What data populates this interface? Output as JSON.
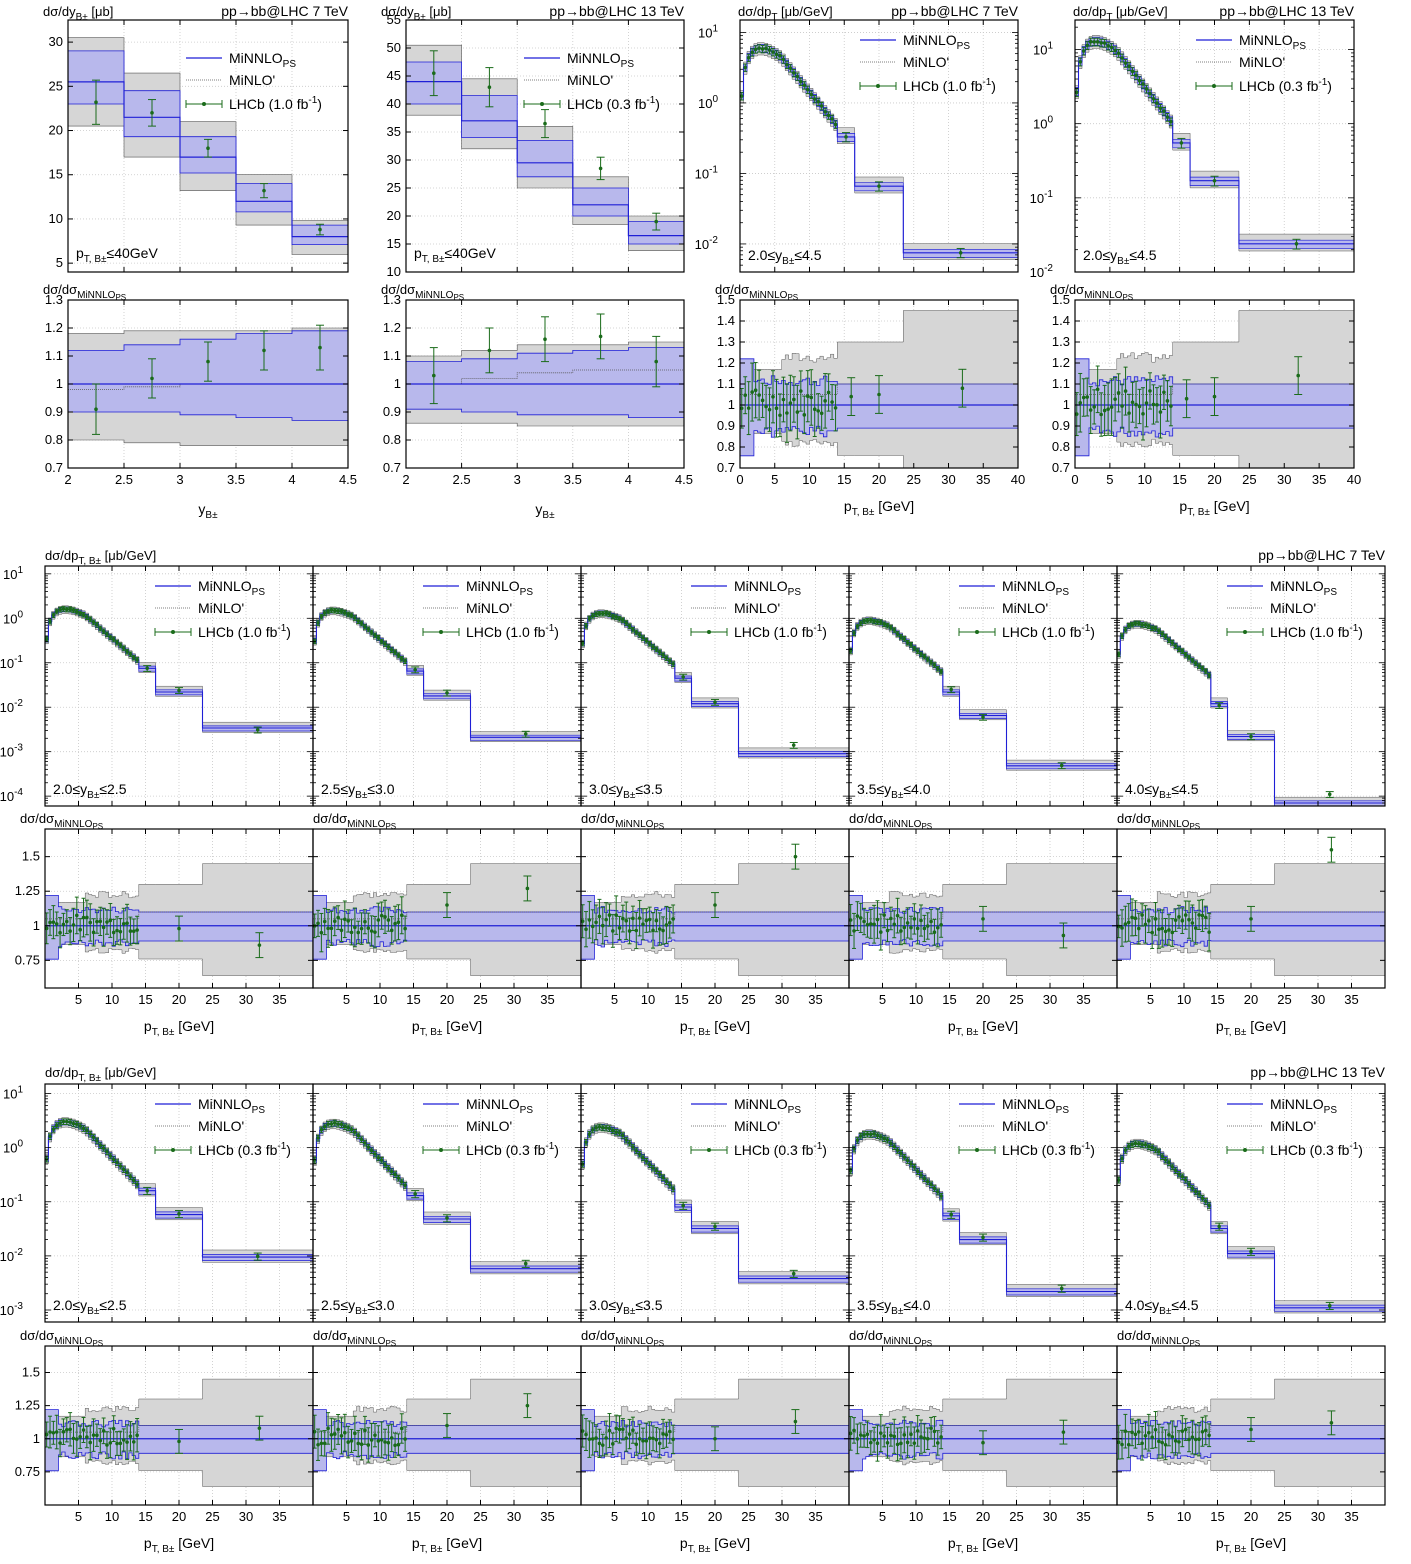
{
  "legend": {
    "minnlo_label": "MiNNLO",
    "minnlo_sub": "PS",
    "minlo_label": "MiNLO'",
    "lhcb_7tev": "LHCb (1.0 fb",
    "lhcb_13tev": "LHCb (0.3 fb",
    "fb_sup": "-1",
    "fb_close": ")"
  },
  "colors": {
    "minnlo_line": "#1f1fd6",
    "minnlo_band": "#b8b8ec",
    "minlo_band": "#d6d6d6",
    "minlo_line": "#555555",
    "lhcb_points": "#1a6b1a",
    "grid": "#c8c8c8"
  },
  "labels": {
    "process_7tev": "pp→bb@LHC 7 TeV",
    "process_13tev": "pp→bb@LHC 13 TeV",
    "ylabel_y": "dσ/dy",
    "ylabel_y_sub": "B±",
    "ylabel_y_unit": " [μb]",
    "ylabel_pt": "dσ/dp",
    "ylabel_pt_sub_T": "T",
    "ylabel_pt_sub_TB": "T, B±",
    "ylabel_pt_unit": " [μb/GeV]",
    "ratio_label": "dσ/dσ",
    "ratio_sub": "MiNNLO",
    "ratio_subsub": "PS",
    "xlabel_y": "y",
    "xlabel_y_sub": "B±",
    "xlabel_pt": "p",
    "xlabel_pt_sub": "T, B±",
    "xlabel_pt_unit": " [GeV]",
    "ptcut": "p",
    "ptcut_sub": "T, B±",
    "ptcut_rest": "≤40GeV",
    "yrange_full": "2.0≤y",
    "yrange_sub": "B±",
    "yrange_full_rest": "≤4.5",
    "slices": [
      {
        "lo": "2.0≤y",
        "hi": "≤2.5"
      },
      {
        "lo": "2.5≤y",
        "hi": "≤3.0"
      },
      {
        "lo": "3.0≤y",
        "hi": "≤3.5"
      },
      {
        "lo": "3.5≤y",
        "hi": "≤4.0"
      },
      {
        "lo": "4.0≤y",
        "hi": "≤4.5"
      }
    ]
  },
  "chart_data": [
    {
      "id": "y-7tev",
      "type": "line",
      "energy": "7 TeV",
      "x_var": "y_B",
      "xlim": [
        2,
        4.5
      ],
      "ylim": [
        4,
        32.5
      ],
      "ylog": false,
      "yticks": [
        5,
        10,
        15,
        20,
        25,
        30
      ],
      "xticks": [
        2,
        2.5,
        3,
        3.5,
        4,
        4.5
      ],
      "bins": [
        2.0,
        2.5,
        3.0,
        3.5,
        4.0,
        4.5
      ],
      "minnlo": [
        25.5,
        21.5,
        17.0,
        12.0,
        8.0
      ],
      "minnlo_lo": [
        23.0,
        19.3,
        15.2,
        10.8,
        7.1
      ],
      "minnlo_hi": [
        29.0,
        24.5,
        19.3,
        14.0,
        9.3
      ],
      "minlo_lo": [
        20.5,
        17.0,
        13.2,
        9.3,
        6.0
      ],
      "minlo_hi": [
        30.5,
        26.5,
        21.0,
        15.0,
        9.8
      ],
      "data_x": [
        2.25,
        2.75,
        3.25,
        3.75,
        4.25
      ],
      "data_y": [
        23.2,
        22.0,
        18.0,
        13.2,
        8.8
      ],
      "data_err": [
        2.5,
        1.5,
        1.0,
        0.8,
        0.6
      ],
      "ratio_ylim": [
        0.7,
        1.3
      ],
      "ratio_yticks": [
        0.7,
        0.8,
        0.9,
        1,
        1.1,
        1.2,
        1.3
      ],
      "ratio_data": [
        0.91,
        1.02,
        1.08,
        1.12,
        1.13
      ],
      "ratio_err": [
        0.09,
        0.07,
        0.07,
        0.07,
        0.08
      ],
      "ratio_minnlo_lo": [
        0.9,
        0.9,
        0.89,
        0.88,
        0.87
      ],
      "ratio_minnlo_hi": [
        1.12,
        1.14,
        1.16,
        1.18,
        1.19
      ],
      "ratio_minlo": [
        0.98,
        0.99,
        1.0,
        1.0,
        1.0
      ],
      "ratio_minlo_lo": [
        0.8,
        0.79,
        0.78,
        0.78,
        0.78
      ],
      "ratio_minlo_hi": [
        1.18,
        1.19,
        1.19,
        1.19,
        1.2
      ]
    },
    {
      "id": "y-13tev",
      "type": "line",
      "energy": "13 TeV",
      "x_var": "y_B",
      "xlim": [
        2,
        4.5
      ],
      "ylim": [
        10,
        55
      ],
      "ylog": false,
      "yticks": [
        10,
        15,
        20,
        25,
        30,
        35,
        40,
        45,
        50,
        55
      ],
      "xticks": [
        2,
        2.5,
        3,
        3.5,
        4,
        4.5
      ],
      "bins": [
        2.0,
        2.5,
        3.0,
        3.5,
        4.0,
        4.5
      ],
      "minnlo": [
        44.0,
        37.0,
        29.5,
        22.0,
        16.5
      ],
      "minnlo_lo": [
        40.0,
        34.0,
        27.0,
        20.0,
        15.0
      ],
      "minnlo_hi": [
        47.5,
        41.5,
        33.5,
        25.0,
        19.0
      ],
      "minlo_lo": [
        38.0,
        32.0,
        25.0,
        18.5,
        13.8
      ],
      "minlo_hi": [
        50.5,
        44.5,
        36.0,
        27.0,
        20.0
      ],
      "data_x": [
        2.25,
        2.75,
        3.25,
        3.75,
        4.25
      ],
      "data_y": [
        45.5,
        43.0,
        36.5,
        28.5,
        19.0
      ],
      "data_err": [
        4.0,
        3.5,
        2.5,
        2.0,
        1.5
      ],
      "ratio_ylim": [
        0.7,
        1.3
      ],
      "ratio_yticks": [
        0.7,
        0.8,
        0.9,
        1,
        1.1,
        1.2,
        1.3
      ],
      "ratio_data": [
        1.03,
        1.12,
        1.16,
        1.17,
        1.08
      ],
      "ratio_err": [
        0.1,
        0.08,
        0.08,
        0.08,
        0.09
      ],
      "ratio_minnlo_lo": [
        0.91,
        0.9,
        0.89,
        0.89,
        0.88
      ],
      "ratio_minnlo_hi": [
        1.08,
        1.09,
        1.11,
        1.12,
        1.13
      ],
      "ratio_minlo": [
        1.0,
        1.02,
        1.04,
        1.05,
        1.05
      ],
      "ratio_minlo_lo": [
        0.86,
        0.86,
        0.85,
        0.85,
        0.85
      ],
      "ratio_minlo_hi": [
        1.1,
        1.12,
        1.14,
        1.14,
        1.15
      ]
    },
    {
      "id": "pt-7tev-full",
      "type": "line",
      "energy": "7 TeV",
      "x_var": "pT_B",
      "xlim": [
        0,
        40
      ],
      "ylim": [
        0.004,
        15
      ],
      "ylog": true,
      "ydecades": [
        -2,
        -1,
        0,
        1
      ],
      "xticks": [
        0,
        5,
        10,
        15,
        20,
        25,
        30,
        35,
        40
      ],
      "peak": 6.0,
      "tail_k": 0.28,
      "wide_bins": [
        [
          14,
          16.5,
          0.33
        ],
        [
          16.5,
          23.5,
          0.066
        ],
        [
          23.5,
          40,
          0.0075
        ]
      ],
      "ratio_ylim": [
        0.7,
        1.5
      ],
      "ratio_yticks": [
        0.7,
        0.8,
        0.9,
        1,
        1.1,
        1.2,
        1.3,
        1.4,
        1.5
      ],
      "ratio_data_far": [
        [
          16,
          1.04
        ],
        [
          20,
          1.05
        ],
        [
          32,
          1.08
        ]
      ]
    },
    {
      "id": "pt-13tev-full",
      "type": "line",
      "energy": "13 TeV",
      "x_var": "pT_B",
      "xlim": [
        0,
        40
      ],
      "ylim": [
        0.01,
        25
      ],
      "ylog": true,
      "ydecades": [
        -2,
        -1,
        0,
        1
      ],
      "xticks": [
        0,
        5,
        10,
        15,
        20,
        25,
        30,
        35,
        40
      ],
      "peak": 13.0,
      "tail_k": 0.28,
      "wide_bins": [
        [
          14,
          16.5,
          0.55
        ],
        [
          16.5,
          23.5,
          0.17
        ],
        [
          23.5,
          40,
          0.024
        ]
      ],
      "ratio_ylim": [
        0.7,
        1.5
      ],
      "ratio_yticks": [
        0.7,
        0.8,
        0.9,
        1,
        1.1,
        1.2,
        1.3,
        1.4,
        1.5
      ],
      "ratio_data_far": [
        [
          16,
          1.03
        ],
        [
          20,
          1.04
        ],
        [
          32,
          1.14
        ]
      ]
    }
  ],
  "slice_charts": {
    "7tev": {
      "ylim": [
        6e-05,
        15
      ],
      "ydecades": [
        -4,
        -3,
        -2,
        -1,
        0,
        1
      ],
      "xticks": [
        5,
        10,
        15,
        20,
        25,
        30,
        35
      ],
      "ratio_ylim": [
        0.55,
        1.7
      ],
      "ratio_yticks": [
        0.75,
        1,
        1.25,
        1.5
      ],
      "slices": [
        {
          "peak": 1.6,
          "tail": [
            0.075,
            0.022,
            0.0034
          ],
          "data_tail": [
            0.075,
            0.024,
            0.0031
          ],
          "ratio_far": [
            [
              20,
              0.98
            ],
            [
              32,
              0.86
            ]
          ]
        },
        {
          "peak": 1.5,
          "tail": [
            0.065,
            0.018,
            0.0021
          ],
          "data_tail": [
            0.07,
            0.021,
            0.0025
          ],
          "ratio_far": [
            [
              20,
              1.15
            ],
            [
              32,
              1.27
            ]
          ]
        },
        {
          "peak": 1.3,
          "tail": [
            0.045,
            0.012,
            0.0009
          ],
          "data_tail": [
            0.048,
            0.013,
            0.0014
          ],
          "ratio_far": [
            [
              20,
              1.15
            ],
            [
              32,
              1.5
            ]
          ]
        },
        {
          "peak": 0.9,
          "tail": [
            0.022,
            0.0065,
            0.00048
          ],
          "data_tail": [
            0.025,
            0.006,
            0.00049
          ],
          "ratio_far": [
            [
              20,
              1.05
            ],
            [
              32,
              0.93
            ]
          ]
        },
        {
          "peak": 0.75,
          "tail": [
            0.012,
            0.0022,
            7e-05
          ],
          "data_tail": [
            0.011,
            0.0022,
            0.00011
          ],
          "ratio_far": [
            [
              20,
              1.05
            ],
            [
              32,
              1.55
            ]
          ]
        }
      ]
    },
    "13tev": {
      "ylim": [
        0.0006,
        15
      ],
      "ydecades": [
        -3,
        -2,
        -1,
        0,
        1
      ],
      "xticks": [
        5,
        10,
        15,
        20,
        25,
        30,
        35
      ],
      "ratio_ylim": [
        0.5,
        1.7
      ],
      "ratio_yticks": [
        0.75,
        1,
        1.25,
        1.5
      ],
      "slices": [
        {
          "peak": 3.0,
          "tail": [
            0.16,
            0.058,
            0.0095
          ],
          "data_tail": [
            0.16,
            0.06,
            0.0098
          ],
          "ratio_far": [
            [
              20,
              0.98
            ],
            [
              32,
              1.08
            ]
          ]
        },
        {
          "peak": 2.8,
          "tail": [
            0.13,
            0.048,
            0.0058
          ],
          "data_tail": [
            0.14,
            0.05,
            0.0072
          ],
          "ratio_far": [
            [
              20,
              1.1
            ],
            [
              32,
              1.25
            ]
          ]
        },
        {
          "peak": 2.4,
          "tail": [
            0.08,
            0.032,
            0.0038
          ],
          "data_tail": [
            0.085,
            0.035,
            0.0047
          ],
          "ratio_far": [
            [
              20,
              1.0
            ],
            [
              32,
              1.13
            ]
          ]
        },
        {
          "peak": 1.8,
          "tail": [
            0.055,
            0.02,
            0.0022
          ],
          "data_tail": [
            0.058,
            0.022,
            0.0025
          ],
          "ratio_far": [
            [
              20,
              0.97
            ],
            [
              32,
              1.05
            ]
          ]
        },
        {
          "peak": 1.2,
          "tail": [
            0.032,
            0.011,
            0.0011
          ],
          "data_tail": [
            0.035,
            0.012,
            0.0012
          ],
          "ratio_far": [
            [
              20,
              1.07
            ],
            [
              32,
              1.12
            ]
          ]
        }
      ]
    }
  }
}
